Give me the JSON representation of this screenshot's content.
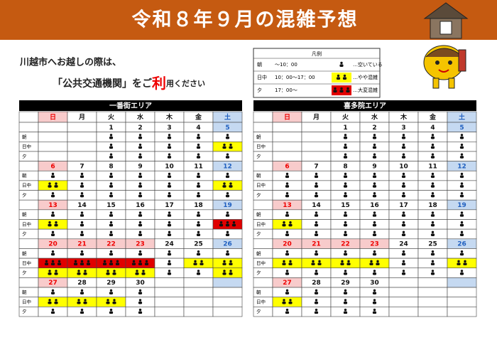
{
  "header": {
    "title": "令和８年９月の混雑予想"
  },
  "notice": {
    "line1": "川越市へお越しの際は、",
    "line2a": "「公共交通機関」をご",
    "line2b": "利",
    "line2c": "用ください"
  },
  "legend": {
    "title": "凡例",
    "rows": [
      {
        "label": "朝",
        "time": "～10：00",
        "level": 1,
        "desc": "…空いている"
      },
      {
        "label": "日中",
        "time": "10：00～17：00",
        "level": 2,
        "desc": "…やや混雑"
      },
      {
        "label": "夕",
        "time": "17：00～",
        "level": 3,
        "desc": "…大変混雑"
      }
    ]
  },
  "weekdays": [
    "日",
    "月",
    "火",
    "水",
    "木",
    "金",
    "土"
  ],
  "row_labels": [
    "朝",
    "日中",
    "夕"
  ],
  "holidays": [
    21,
    22,
    23
  ],
  "areas": [
    {
      "name": "一番街エリア",
      "weeks": [
        {
          "dates": [
            null,
            null,
            1,
            2,
            3,
            4,
            5
          ],
          "rows": [
            [
              null,
              null,
              1,
              1,
              1,
              1,
              1
            ],
            [
              null,
              null,
              1,
              1,
              1,
              1,
              2
            ],
            [
              null,
              null,
              1,
              1,
              1,
              1,
              1
            ]
          ]
        },
        {
          "dates": [
            6,
            7,
            8,
            9,
            10,
            11,
            12
          ],
          "rows": [
            [
              1,
              1,
              1,
              1,
              1,
              1,
              1
            ],
            [
              2,
              1,
              1,
              1,
              1,
              1,
              2
            ],
            [
              1,
              1,
              1,
              1,
              1,
              1,
              1
            ]
          ]
        },
        {
          "dates": [
            13,
            14,
            15,
            16,
            17,
            18,
            19
          ],
          "rows": [
            [
              1,
              1,
              1,
              1,
              1,
              1,
              1
            ],
            [
              2,
              1,
              1,
              1,
              1,
              1,
              3
            ],
            [
              1,
              1,
              1,
              1,
              1,
              1,
              1
            ]
          ]
        },
        {
          "dates": [
            20,
            21,
            22,
            23,
            24,
            25,
            26
          ],
          "rows": [
            [
              1,
              1,
              1,
              1,
              1,
              1,
              1
            ],
            [
              3,
              3,
              3,
              3,
              1,
              2,
              2
            ],
            [
              2,
              2,
              2,
              2,
              1,
              1,
              2
            ]
          ]
        },
        {
          "dates": [
            27,
            28,
            29,
            30,
            null,
            null,
            null
          ],
          "rows": [
            [
              1,
              1,
              1,
              1,
              null,
              null,
              null
            ],
            [
              2,
              2,
              2,
              1,
              null,
              null,
              null
            ],
            [
              1,
              1,
              1,
              1,
              null,
              null,
              null
            ]
          ]
        }
      ]
    },
    {
      "name": "喜多院エリア",
      "weeks": [
        {
          "dates": [
            null,
            null,
            1,
            2,
            3,
            4,
            5
          ],
          "rows": [
            [
              null,
              null,
              1,
              1,
              1,
              1,
              1
            ],
            [
              null,
              null,
              1,
              1,
              1,
              1,
              1
            ],
            [
              null,
              null,
              1,
              1,
              1,
              1,
              1
            ]
          ]
        },
        {
          "dates": [
            6,
            7,
            8,
            9,
            10,
            11,
            12
          ],
          "rows": [
            [
              1,
              1,
              1,
              1,
              1,
              1,
              1
            ],
            [
              1,
              1,
              1,
              1,
              1,
              1,
              1
            ],
            [
              1,
              1,
              1,
              1,
              1,
              1,
              1
            ]
          ]
        },
        {
          "dates": [
            13,
            14,
            15,
            16,
            17,
            18,
            19
          ],
          "rows": [
            [
              1,
              1,
              1,
              1,
              1,
              1,
              1
            ],
            [
              2,
              1,
              1,
              1,
              1,
              1,
              1
            ],
            [
              1,
              1,
              1,
              1,
              1,
              1,
              1
            ]
          ]
        },
        {
          "dates": [
            20,
            21,
            22,
            23,
            24,
            25,
            26
          ],
          "rows": [
            [
              1,
              1,
              1,
              1,
              1,
              1,
              1
            ],
            [
              2,
              2,
              2,
              2,
              1,
              1,
              2
            ],
            [
              1,
              1,
              1,
              1,
              1,
              1,
              1
            ]
          ]
        },
        {
          "dates": [
            27,
            28,
            29,
            30,
            null,
            null,
            null
          ],
          "rows": [
            [
              1,
              1,
              1,
              1,
              null,
              null,
              null
            ],
            [
              2,
              1,
              1,
              1,
              null,
              null,
              null
            ],
            [
              1,
              1,
              1,
              1,
              null,
              null,
              null
            ]
          ]
        }
      ]
    }
  ]
}
